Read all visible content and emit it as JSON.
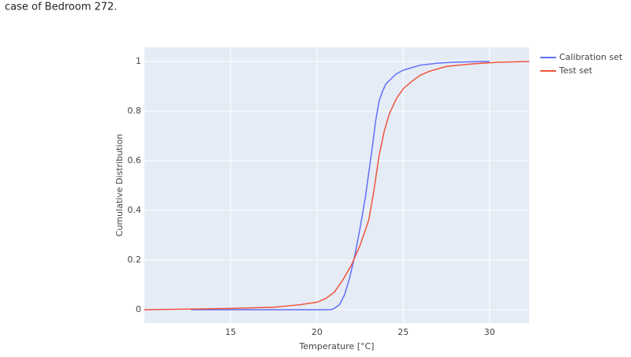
{
  "caption": "case of Bedroom 272.",
  "chart_data": {
    "type": "line",
    "x_label": "Temperature [°C]",
    "y_label": "Cumulative Distribution",
    "xlim": [
      10,
      32.3
    ],
    "ylim": [
      -0.054,
      1.057
    ],
    "xticks": [
      15,
      20,
      25,
      30
    ],
    "yticks": [
      0,
      0.2,
      0.4,
      0.6,
      0.8,
      1
    ],
    "grid": true,
    "legend": "outside-top-right",
    "series": [
      {
        "name": "Calibration set",
        "color": "#636efa",
        "x": [
          12.7,
          20.8,
          21.0,
          21.3,
          21.6,
          21.9,
          22.2,
          22.5,
          22.8,
          23.0,
          23.2,
          23.4,
          23.6,
          23.8,
          24.0,
          24.3,
          24.6,
          25.0,
          25.5,
          26,
          27,
          28,
          30
        ],
        "values": [
          0,
          0,
          0.005,
          0.02,
          0.06,
          0.13,
          0.22,
          0.33,
          0.45,
          0.55,
          0.65,
          0.76,
          0.84,
          0.88,
          0.91,
          0.93,
          0.95,
          0.965,
          0.975,
          0.985,
          0.993,
          0.997,
          1
        ]
      },
      {
        "name": "Test set",
        "color": "#ef553b",
        "x": [
          10,
          15,
          17.5,
          19,
          20,
          20.5,
          21,
          21.5,
          22,
          22.5,
          23,
          23.3,
          23.6,
          23.9,
          24.2,
          24.6,
          25,
          25.5,
          26,
          26.5,
          27.5,
          29,
          30.5,
          32.3
        ],
        "values": [
          0,
          0.005,
          0.01,
          0.02,
          0.03,
          0.045,
          0.07,
          0.12,
          0.18,
          0.26,
          0.36,
          0.48,
          0.62,
          0.72,
          0.79,
          0.85,
          0.89,
          0.92,
          0.945,
          0.96,
          0.98,
          0.99,
          0.997,
          1
        ]
      }
    ]
  }
}
